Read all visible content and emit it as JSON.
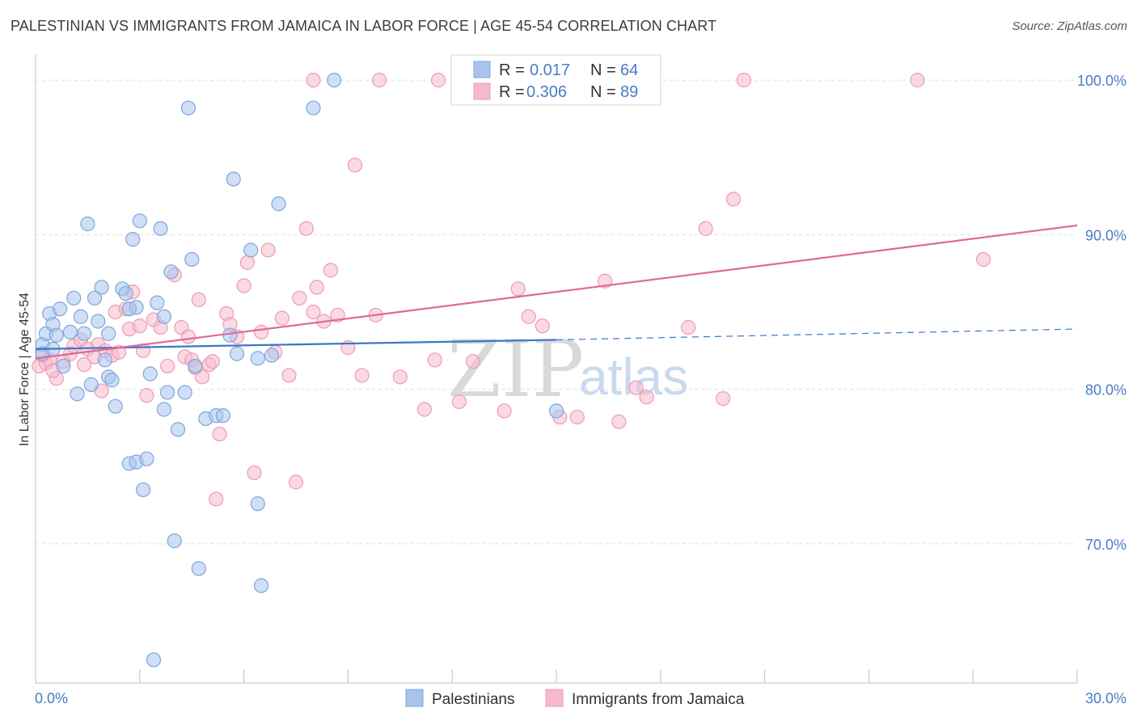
{
  "title": "PALESTINIAN VS IMMIGRANTS FROM JAMAICA IN LABOR FORCE | AGE 45-54 CORRELATION CHART",
  "source": "Source: ZipAtlas.com",
  "watermark": {
    "zip": "ZIP",
    "atlas": "atlas"
  },
  "colors": {
    "blue_fill": "#a8c4ec",
    "blue_stroke": "#7fa6dc",
    "blue_line": "#3a78c8",
    "pink_fill": "#f6b9cc",
    "pink_stroke": "#ee9ab4",
    "pink_line": "#e06894",
    "grid": "#dddddd",
    "tick_text": "#4a7cc4"
  },
  "legend": {
    "rows": [
      {
        "r_label": "R = ",
        "r_value": "0.017",
        "n_label": "N = ",
        "n_value": "64",
        "series": "blue"
      },
      {
        "r_label": "R = ",
        "r_value": "0.306",
        "n_label": "N = ",
        "n_value": "89",
        "series": "pink"
      }
    ]
  },
  "bottom_legend": [
    "Palestinians",
    "Immigrants from Jamaica"
  ],
  "chart_data": {
    "type": "scatter",
    "title": "PALESTINIAN VS IMMIGRANTS FROM JAMAICA IN LABOR FORCE | AGE 45-54 CORRELATION CHART",
    "xlabel": "",
    "ylabel": "In Labor Force | Age 45-54",
    "xlim": [
      0,
      30
    ],
    "ylim": [
      61,
      101
    ],
    "x_tick_labels": [
      "0.0%",
      "30.0%"
    ],
    "y_ticks": [
      70,
      80,
      90,
      100
    ],
    "y_tick_labels": [
      "70.0%",
      "80.0%",
      "90.0%",
      "100.0%"
    ],
    "grid": true,
    "legend_position": "top-center",
    "series": [
      {
        "name": "Palestinians",
        "color": "#a8c4ec",
        "trend": {
          "x": [
            0,
            15,
            30
          ],
          "y": [
            82.6,
            83.2,
            83.9
          ],
          "solid_until_x": 15
        },
        "points": [
          [
            0.2,
            82.9
          ],
          [
            0.3,
            83.6
          ],
          [
            0.2,
            82.3
          ],
          [
            0.4,
            84.9
          ],
          [
            0.5,
            84.2
          ],
          [
            0.5,
            82.6
          ],
          [
            0.7,
            85.2
          ],
          [
            0.6,
            83.5
          ],
          [
            0.8,
            81.5
          ],
          [
            1.0,
            83.7
          ],
          [
            1.1,
            85.9
          ],
          [
            1.2,
            79.7
          ],
          [
            1.3,
            84.7
          ],
          [
            1.4,
            83.6
          ],
          [
            1.5,
            90.7
          ],
          [
            1.6,
            80.3
          ],
          [
            1.7,
            85.9
          ],
          [
            1.8,
            84.4
          ],
          [
            1.9,
            86.6
          ],
          [
            2.0,
            81.9
          ],
          [
            2.1,
            80.8
          ],
          [
            2.2,
            80.6
          ],
          [
            2.1,
            83.6
          ],
          [
            2.3,
            78.9
          ],
          [
            2.5,
            86.5
          ],
          [
            2.6,
            86.2
          ],
          [
            2.8,
            89.7
          ],
          [
            2.9,
            85.3
          ],
          [
            3.0,
            90.9
          ],
          [
            2.7,
            85.2
          ],
          [
            2.7,
            75.2
          ],
          [
            2.9,
            75.3
          ],
          [
            3.1,
            73.5
          ],
          [
            3.2,
            75.5
          ],
          [
            3.3,
            81.0
          ],
          [
            3.5,
            85.6
          ],
          [
            3.6,
            90.4
          ],
          [
            3.7,
            78.7
          ],
          [
            3.8,
            79.8
          ],
          [
            3.9,
            87.6
          ],
          [
            3.7,
            84.7
          ],
          [
            4.0,
            70.2
          ],
          [
            4.1,
            77.4
          ],
          [
            4.3,
            79.8
          ],
          [
            4.5,
            88.4
          ],
          [
            4.6,
            81.5
          ],
          [
            4.7,
            68.4
          ],
          [
            3.4,
            62.5
          ],
          [
            4.9,
            78.1
          ],
          [
            5.2,
            78.3
          ],
          [
            5.4,
            78.3
          ],
          [
            5.6,
            83.5
          ],
          [
            5.7,
            93.6
          ],
          [
            5.8,
            82.3
          ],
          [
            6.2,
            89.0
          ],
          [
            6.4,
            82.0
          ],
          [
            6.4,
            72.6
          ],
          [
            6.5,
            67.3
          ],
          [
            6.8,
            82.2
          ],
          [
            7.0,
            92.0
          ],
          [
            8.0,
            98.2
          ],
          [
            4.4,
            98.2
          ],
          [
            8.6,
            100.0
          ],
          [
            15.0,
            78.6
          ]
        ]
      },
      {
        "name": "Immigrants from Jamaica",
        "color": "#f6b9cc",
        "trend": {
          "x": [
            0,
            30
          ],
          "y": [
            82.0,
            90.6
          ]
        },
        "points": [
          [
            0.1,
            81.5
          ],
          [
            0.2,
            82.2
          ],
          [
            0.3,
            81.7
          ],
          [
            0.4,
            81.9
          ],
          [
            0.6,
            80.7
          ],
          [
            0.5,
            81.2
          ],
          [
            0.8,
            81.8
          ],
          [
            1.0,
            82.3
          ],
          [
            1.1,
            82.8
          ],
          [
            1.3,
            83.2
          ],
          [
            1.4,
            81.6
          ],
          [
            1.5,
            82.6
          ],
          [
            1.7,
            82.1
          ],
          [
            1.8,
            82.9
          ],
          [
            1.9,
            79.9
          ],
          [
            2.0,
            82.5
          ],
          [
            2.2,
            82.2
          ],
          [
            2.3,
            85.0
          ],
          [
            2.4,
            82.4
          ],
          [
            2.6,
            85.2
          ],
          [
            2.7,
            83.9
          ],
          [
            2.8,
            86.3
          ],
          [
            3.0,
            84.1
          ],
          [
            3.1,
            82.5
          ],
          [
            3.2,
            79.6
          ],
          [
            3.4,
            84.5
          ],
          [
            3.6,
            84.0
          ],
          [
            3.8,
            81.5
          ],
          [
            4.0,
            87.4
          ],
          [
            4.2,
            84.0
          ],
          [
            4.3,
            82.1
          ],
          [
            4.4,
            83.4
          ],
          [
            4.5,
            81.9
          ],
          [
            4.6,
            81.4
          ],
          [
            4.7,
            85.8
          ],
          [
            4.8,
            80.8
          ],
          [
            5.0,
            81.6
          ],
          [
            5.1,
            81.8
          ],
          [
            5.2,
            72.9
          ],
          [
            5.3,
            77.1
          ],
          [
            5.5,
            84.9
          ],
          [
            5.6,
            84.2
          ],
          [
            5.8,
            83.4
          ],
          [
            6.0,
            86.7
          ],
          [
            6.1,
            88.2
          ],
          [
            6.3,
            74.6
          ],
          [
            6.5,
            83.7
          ],
          [
            6.7,
            89.0
          ],
          [
            6.9,
            82.4
          ],
          [
            7.1,
            84.6
          ],
          [
            7.3,
            80.9
          ],
          [
            7.5,
            74.0
          ],
          [
            7.6,
            85.9
          ],
          [
            7.8,
            90.4
          ],
          [
            8.0,
            85.0
          ],
          [
            8.1,
            86.6
          ],
          [
            8.3,
            84.4
          ],
          [
            8.5,
            87.7
          ],
          [
            8.7,
            84.8
          ],
          [
            9.0,
            82.7
          ],
          [
            9.2,
            94.5
          ],
          [
            9.4,
            80.9
          ],
          [
            9.8,
            84.8
          ],
          [
            10.5,
            80.8
          ],
          [
            11.2,
            78.7
          ],
          [
            11.5,
            81.9
          ],
          [
            12.2,
            79.2
          ],
          [
            12.6,
            81.8
          ],
          [
            13.5,
            78.6
          ],
          [
            13.9,
            86.5
          ],
          [
            14.2,
            84.7
          ],
          [
            14.6,
            84.1
          ],
          [
            15.1,
            78.2
          ],
          [
            15.6,
            78.2
          ],
          [
            16.4,
            87.0
          ],
          [
            16.8,
            77.9
          ],
          [
            17.3,
            80.1
          ],
          [
            17.6,
            79.5
          ],
          [
            18.8,
            84.0
          ],
          [
            19.3,
            90.4
          ],
          [
            19.8,
            79.4
          ],
          [
            20.1,
            92.3
          ],
          [
            27.3,
            88.4
          ],
          [
            8.0,
            100.0
          ],
          [
            9.9,
            100.0
          ],
          [
            11.6,
            100.0
          ],
          [
            12.6,
            100.0
          ],
          [
            20.4,
            100.0
          ],
          [
            25.4,
            100.0
          ]
        ]
      }
    ]
  }
}
